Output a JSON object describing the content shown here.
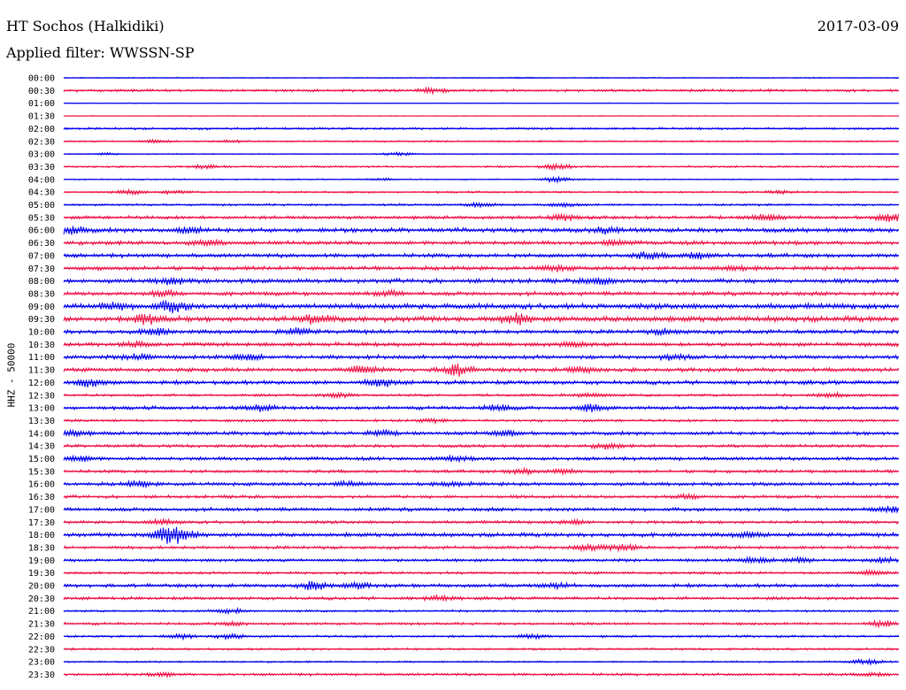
{
  "header": {
    "station": "HT Sochos (Halkidiki)",
    "date": "2017-03-09",
    "filter": "Applied filter: WWSSN-SP"
  },
  "colors": {
    "trace_a": "#0000ee",
    "trace_b": "#ee1144",
    "text": "#000000",
    "background": "#ffffff"
  },
  "chart_data": {
    "type": "line",
    "title": "HT Sochos (Halkidiki)",
    "subtitle": "Applied filter: WWSSN-SP",
    "ylabel": "HHZ - 50000",
    "xlabel": "",
    "grid": false,
    "rows": [
      {
        "label": "00:00",
        "color": "trace_a",
        "level": 0.5,
        "events": [
          {
            "t": 0.55,
            "a": 0.5
          }
        ]
      },
      {
        "label": "00:30",
        "color": "trace_b",
        "level": 1.2,
        "events": [
          {
            "t": 0.44,
            "a": 2.5
          }
        ]
      },
      {
        "label": "01:00",
        "color": "trace_a",
        "level": 0.4,
        "events": []
      },
      {
        "label": "01:30",
        "color": "trace_b",
        "level": 0.4,
        "events": []
      },
      {
        "label": "02:00",
        "color": "trace_a",
        "level": 1.0,
        "events": []
      },
      {
        "label": "02:30",
        "color": "trace_b",
        "level": 0.8,
        "events": [
          {
            "t": 0.11,
            "a": 1.5
          },
          {
            "t": 0.2,
            "a": 1.2
          }
        ]
      },
      {
        "label": "03:00",
        "color": "trace_a",
        "level": 0.5,
        "events": [
          {
            "t": 0.4,
            "a": 1.5
          },
          {
            "t": 0.05,
            "a": 1.0
          }
        ]
      },
      {
        "label": "03:30",
        "color": "trace_b",
        "level": 0.9,
        "events": [
          {
            "t": 0.17,
            "a": 1.5
          },
          {
            "t": 0.59,
            "a": 2.5
          }
        ]
      },
      {
        "label": "04:00",
        "color": "trace_a",
        "level": 0.6,
        "events": [
          {
            "t": 0.59,
            "a": 3.0
          },
          {
            "t": 0.38,
            "a": 1.0
          }
        ]
      },
      {
        "label": "04:30",
        "color": "trace_b",
        "level": 0.9,
        "events": [
          {
            "t": 0.08,
            "a": 2.0
          },
          {
            "t": 0.13,
            "a": 1.5
          },
          {
            "t": 0.86,
            "a": 1.5
          }
        ]
      },
      {
        "label": "05:00",
        "color": "trace_a",
        "level": 1.0,
        "events": [
          {
            "t": 0.5,
            "a": 2.5
          },
          {
            "t": 0.6,
            "a": 1.5
          }
        ]
      },
      {
        "label": "05:30",
        "color": "trace_b",
        "level": 1.5,
        "events": [
          {
            "t": 0.6,
            "a": 2.5
          },
          {
            "t": 0.84,
            "a": 3.0
          },
          {
            "t": 0.99,
            "a": 4.0
          }
        ]
      },
      {
        "label": "06:00",
        "color": "trace_a",
        "level": 2.0,
        "events": [
          {
            "t": 0.01,
            "a": 3.5
          },
          {
            "t": 0.15,
            "a": 2.5
          },
          {
            "t": 0.65,
            "a": 2.5
          }
        ]
      },
      {
        "label": "06:30",
        "color": "trace_b",
        "level": 1.8,
        "events": [
          {
            "t": 0.17,
            "a": 2.5
          },
          {
            "t": 0.66,
            "a": 2.0
          }
        ]
      },
      {
        "label": "07:00",
        "color": "trace_a",
        "level": 1.8,
        "events": [
          {
            "t": 0.7,
            "a": 3.0
          },
          {
            "t": 0.76,
            "a": 3.0
          }
        ]
      },
      {
        "label": "07:30",
        "color": "trace_b",
        "level": 1.8,
        "events": [
          {
            "t": 0.59,
            "a": 2.5
          },
          {
            "t": 0.8,
            "a": 2.0
          }
        ]
      },
      {
        "label": "08:00",
        "color": "trace_a",
        "level": 2.0,
        "events": [
          {
            "t": 0.13,
            "a": 3.0
          },
          {
            "t": 0.64,
            "a": 2.5
          }
        ]
      },
      {
        "label": "08:30",
        "color": "trace_b",
        "level": 1.8,
        "events": [
          {
            "t": 0.12,
            "a": 2.5
          },
          {
            "t": 0.39,
            "a": 2.0
          }
        ]
      },
      {
        "label": "09:00",
        "color": "trace_a",
        "level": 2.5,
        "events": [
          {
            "t": 0.13,
            "a": 5.0
          },
          {
            "t": 0.06,
            "a": 3.0
          }
        ]
      },
      {
        "label": "09:30",
        "color": "trace_b",
        "level": 2.5,
        "events": [
          {
            "t": 0.1,
            "a": 5.0
          },
          {
            "t": 0.3,
            "a": 4.5
          },
          {
            "t": 0.54,
            "a": 5.0
          }
        ]
      },
      {
        "label": "10:00",
        "color": "trace_a",
        "level": 1.8,
        "events": [
          {
            "t": 0.11,
            "a": 3.0
          },
          {
            "t": 0.28,
            "a": 3.0
          },
          {
            "t": 0.72,
            "a": 2.5
          }
        ]
      },
      {
        "label": "10:30",
        "color": "trace_b",
        "level": 1.8,
        "events": [
          {
            "t": 0.09,
            "a": 2.5
          },
          {
            "t": 0.61,
            "a": 2.0
          }
        ]
      },
      {
        "label": "11:00",
        "color": "trace_a",
        "level": 1.8,
        "events": [
          {
            "t": 0.09,
            "a": 3.0
          },
          {
            "t": 0.22,
            "a": 3.0
          },
          {
            "t": 0.73,
            "a": 2.0
          }
        ]
      },
      {
        "label": "11:30",
        "color": "trace_b",
        "level": 1.8,
        "events": [
          {
            "t": 0.36,
            "a": 3.5
          },
          {
            "t": 0.47,
            "a": 6.0
          },
          {
            "t": 0.62,
            "a": 2.5
          }
        ]
      },
      {
        "label": "12:00",
        "color": "trace_a",
        "level": 1.8,
        "events": [
          {
            "t": 0.03,
            "a": 4.0
          },
          {
            "t": 0.38,
            "a": 3.5
          }
        ]
      },
      {
        "label": "12:30",
        "color": "trace_b",
        "level": 1.2,
        "events": [
          {
            "t": 0.33,
            "a": 2.0
          },
          {
            "t": 0.63,
            "a": 2.0
          },
          {
            "t": 0.92,
            "a": 2.0
          }
        ]
      },
      {
        "label": "13:00",
        "color": "trace_a",
        "level": 1.6,
        "events": [
          {
            "t": 0.24,
            "a": 3.5
          },
          {
            "t": 0.52,
            "a": 3.0
          },
          {
            "t": 0.63,
            "a": 3.5
          }
        ]
      },
      {
        "label": "13:30",
        "color": "trace_b",
        "level": 1.2,
        "events": [
          {
            "t": 0.44,
            "a": 1.5
          }
        ]
      },
      {
        "label": "14:00",
        "color": "trace_a",
        "level": 1.6,
        "events": [
          {
            "t": 0.01,
            "a": 2.5
          },
          {
            "t": 0.38,
            "a": 2.5
          },
          {
            "t": 0.53,
            "a": 2.5
          }
        ]
      },
      {
        "label": "14:30",
        "color": "trace_b",
        "level": 1.4,
        "events": [
          {
            "t": 0.65,
            "a": 2.5
          }
        ]
      },
      {
        "label": "15:00",
        "color": "trace_a",
        "level": 1.6,
        "events": [
          {
            "t": 0.02,
            "a": 2.5
          },
          {
            "t": 0.47,
            "a": 2.0
          }
        ]
      },
      {
        "label": "15:30",
        "color": "trace_b",
        "level": 1.4,
        "events": [
          {
            "t": 0.55,
            "a": 2.5
          },
          {
            "t": 0.6,
            "a": 2.0
          }
        ]
      },
      {
        "label": "16:00",
        "color": "trace_a",
        "level": 1.6,
        "events": [
          {
            "t": 0.09,
            "a": 2.5
          },
          {
            "t": 0.34,
            "a": 2.0
          },
          {
            "t": 0.47,
            "a": 2.0
          }
        ]
      },
      {
        "label": "16:30",
        "color": "trace_b",
        "level": 1.4,
        "events": [
          {
            "t": 0.75,
            "a": 2.0
          }
        ]
      },
      {
        "label": "17:00",
        "color": "trace_a",
        "level": 1.6,
        "events": [
          {
            "t": 0.99,
            "a": 3.0
          }
        ]
      },
      {
        "label": "17:30",
        "color": "trace_b",
        "level": 1.4,
        "events": [
          {
            "t": 0.12,
            "a": 2.0
          },
          {
            "t": 0.61,
            "a": 2.0
          }
        ]
      },
      {
        "label": "18:00",
        "color": "trace_a",
        "level": 1.8,
        "events": [
          {
            "t": 0.12,
            "a": 7.0
          },
          {
            "t": 0.14,
            "a": 6.0
          },
          {
            "t": 0.82,
            "a": 2.0
          }
        ]
      },
      {
        "label": "18:30",
        "color": "trace_b",
        "level": 1.4,
        "events": [
          {
            "t": 0.63,
            "a": 3.0
          },
          {
            "t": 0.67,
            "a": 3.0
          }
        ]
      },
      {
        "label": "19:00",
        "color": "trace_a",
        "level": 1.4,
        "events": [
          {
            "t": 0.83,
            "a": 2.5
          },
          {
            "t": 0.88,
            "a": 2.5
          },
          {
            "t": 0.98,
            "a": 2.0
          }
        ]
      },
      {
        "label": "19:30",
        "color": "trace_b",
        "level": 1.2,
        "events": [
          {
            "t": 0.97,
            "a": 2.0
          }
        ]
      },
      {
        "label": "20:00",
        "color": "trace_a",
        "level": 1.6,
        "events": [
          {
            "t": 0.3,
            "a": 4.0
          },
          {
            "t": 0.35,
            "a": 2.5
          },
          {
            "t": 0.59,
            "a": 2.0
          }
        ]
      },
      {
        "label": "20:30",
        "color": "trace_b",
        "level": 1.4,
        "events": [
          {
            "t": 0.45,
            "a": 2.0
          }
        ]
      },
      {
        "label": "21:00",
        "color": "trace_a",
        "level": 1.0,
        "events": [
          {
            "t": 0.2,
            "a": 2.0
          }
        ]
      },
      {
        "label": "21:30",
        "color": "trace_b",
        "level": 1.2,
        "events": [
          {
            "t": 0.2,
            "a": 2.0
          },
          {
            "t": 0.98,
            "a": 3.0
          }
        ]
      },
      {
        "label": "22:00",
        "color": "trace_a",
        "level": 1.0,
        "events": [
          {
            "t": 0.14,
            "a": 2.5
          },
          {
            "t": 0.2,
            "a": 2.5
          },
          {
            "t": 0.56,
            "a": 2.0
          }
        ]
      },
      {
        "label": "22:30",
        "color": "trace_b",
        "level": 1.0,
        "events": []
      },
      {
        "label": "23:00",
        "color": "trace_a",
        "level": 0.8,
        "events": [
          {
            "t": 0.96,
            "a": 2.5
          }
        ]
      },
      {
        "label": "23:30",
        "color": "trace_b",
        "level": 1.2,
        "events": [
          {
            "t": 0.12,
            "a": 1.5
          },
          {
            "t": 0.97,
            "a": 1.5
          }
        ]
      }
    ]
  }
}
